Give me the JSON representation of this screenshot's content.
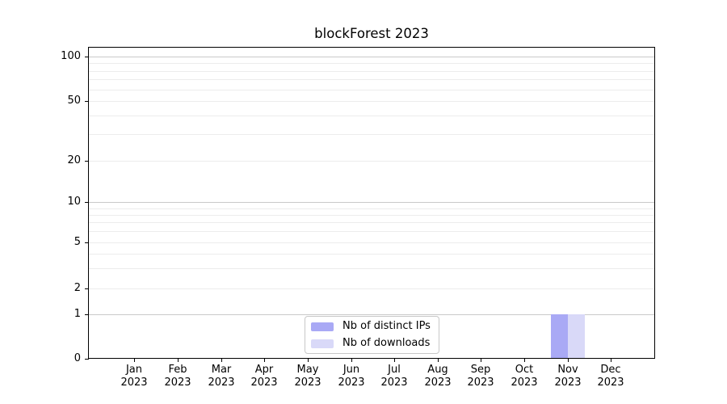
{
  "chart_data": {
    "type": "bar",
    "title": "blockForest 2023",
    "categories": [
      "Jan 2023",
      "Feb 2023",
      "Mar 2023",
      "Apr 2023",
      "May 2023",
      "Jun 2023",
      "Jul 2023",
      "Aug 2023",
      "Sep 2023",
      "Oct 2023",
      "Nov 2023",
      "Dec 2023"
    ],
    "series": [
      {
        "name": "Nb of distinct IPs",
        "color": "#a9a9f5",
        "values": [
          0,
          0,
          0,
          0,
          0,
          0,
          0,
          0,
          0,
          0,
          1,
          0
        ]
      },
      {
        "name": "Nb of downloads",
        "color": "#d9d9f8",
        "values": [
          0,
          0,
          0,
          0,
          0,
          0,
          0,
          0,
          0,
          0,
          1,
          0
        ]
      }
    ],
    "yaxis": {
      "scale": "log above 1, linear 0-1",
      "ticks": [
        100,
        50,
        20,
        10,
        5,
        2,
        1,
        0
      ],
      "major_gridlines": [
        1,
        10,
        100
      ],
      "minor_gridlines": [
        2,
        3,
        4,
        5,
        6,
        7,
        8,
        9,
        20,
        30,
        40,
        50,
        60,
        70,
        80,
        90
      ],
      "range": [
        0,
        115
      ]
    },
    "legend": {
      "position": "lower center"
    },
    "grid": true,
    "colors": {
      "major_grid": "#c9c9c9",
      "minor_grid": "#ececec",
      "axis": "#000000",
      "background": "#ffffff",
      "legend_border": "#c8c8c8"
    }
  }
}
